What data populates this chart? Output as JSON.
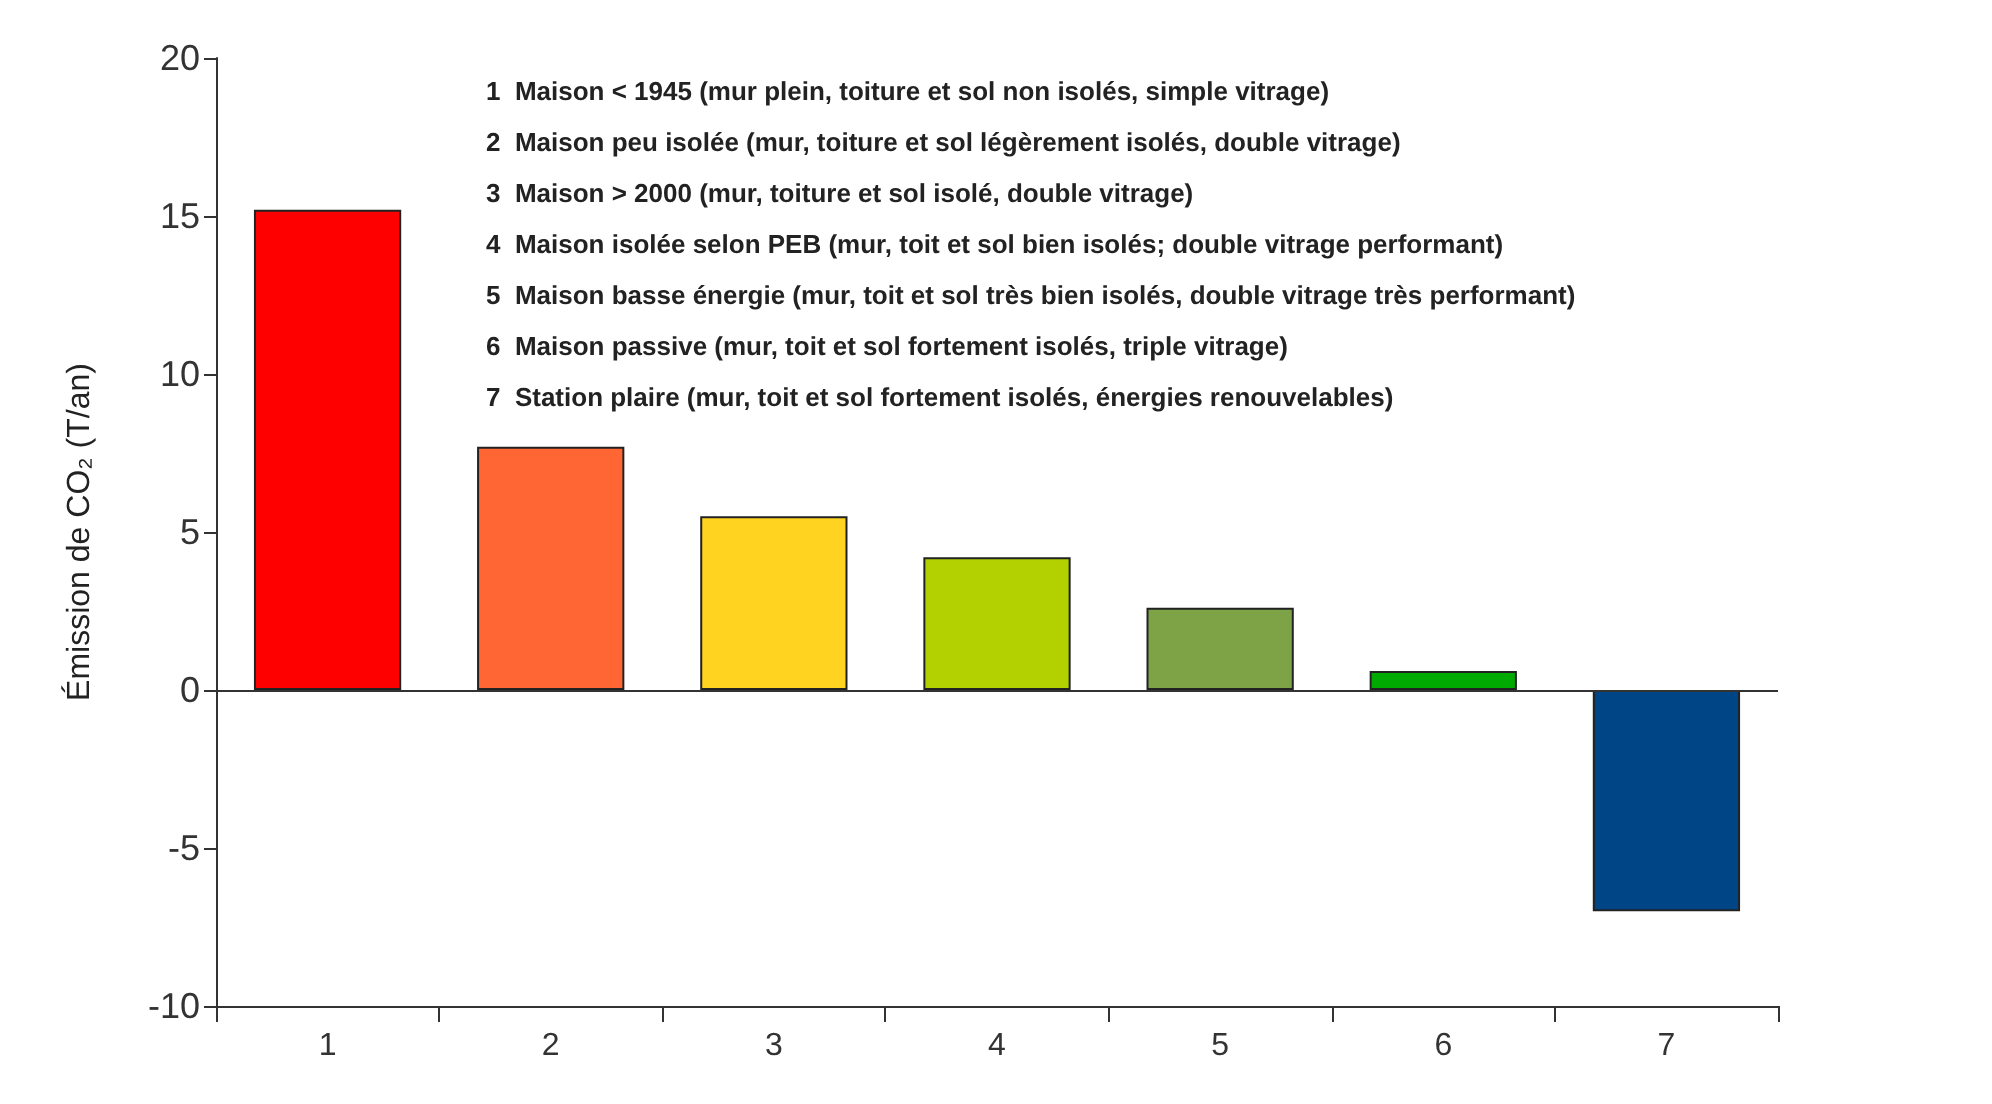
{
  "chart_data": {
    "type": "bar",
    "ylabel": "Émission de CO₂ (T/an)",
    "categories": [
      "1",
      "2",
      "3",
      "4",
      "5",
      "6",
      "7"
    ],
    "values": [
      15.2,
      7.7,
      5.5,
      4.2,
      2.6,
      0.6,
      -7.0
    ],
    "colors": [
      "#ff0000",
      "#ff6633",
      "#ffd320",
      "#b3d000",
      "#7ea346",
      "#00aa00",
      "#004586"
    ],
    "ylim": [
      -10,
      20
    ],
    "yticks": [
      -10,
      -5,
      0,
      5,
      10,
      15,
      20
    ],
    "grid": false,
    "ref_lines": [
      {
        "axis": "y",
        "value": 0
      }
    ],
    "annotations": [
      "1  Maison < 1945 (mur plein, toiture et sol non isolés, simple vitrage)",
      "2  Maison peu isolée (mur, toiture et sol légèrement isolés, double vitrage)",
      "3  Maison > 2000 (mur, toiture et sol isolé, double vitrage)",
      "4  Maison isolée selon PEB (mur, toit et sol bien isolés; double vitrage performant)",
      "5  Maison basse énergie (mur, toit et sol très bien isolés, double vitrage très performant)",
      "6  Maison passive (mur, toit et sol fortement isolés, triple vitrage)",
      "7  Station plaire (mur, toit et sol fortement isolés, énergies renouvelables)"
    ]
  }
}
